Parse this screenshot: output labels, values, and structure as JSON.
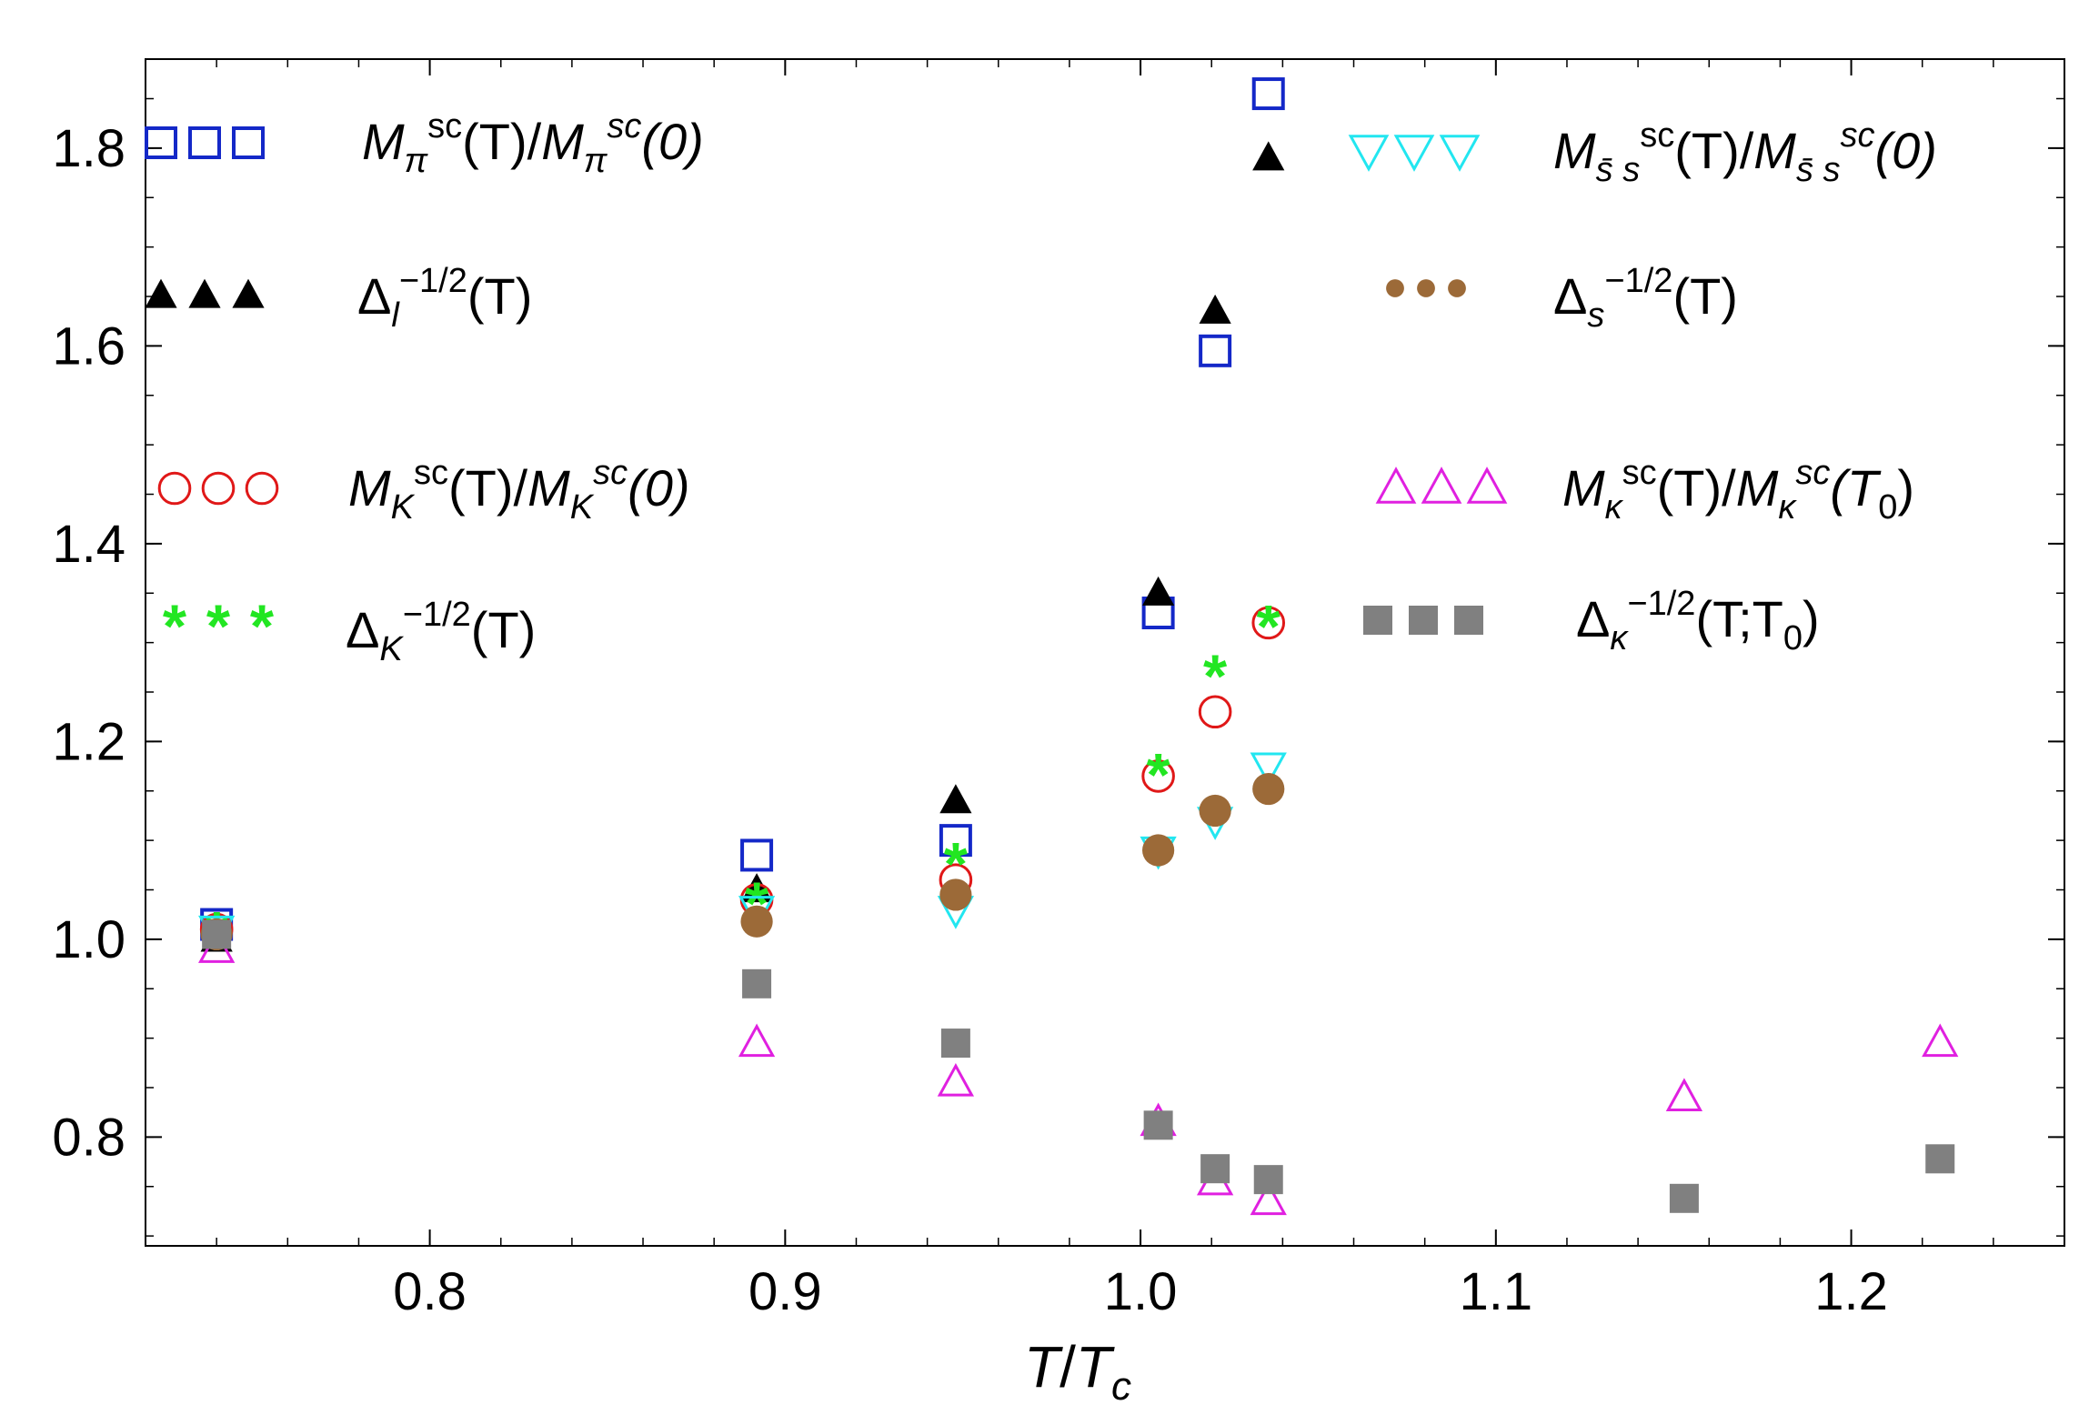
{
  "chart_data": {
    "type": "scatter",
    "title": "",
    "xlabel_parts": {
      "a": "T",
      "slash": "/",
      "b": "T",
      "sub": "c"
    },
    "ylabel": "",
    "xlim": [
      0.72,
      1.26
    ],
    "ylim": [
      0.69,
      1.89
    ],
    "x_ticks": [
      0.8,
      0.9,
      1.0,
      1.1,
      1.2
    ],
    "x_tick_labels": [
      "0.8",
      "0.9",
      "1.0",
      "1.1",
      "1.2"
    ],
    "y_ticks": [
      0.8,
      1.0,
      1.2,
      1.4,
      1.6,
      1.8
    ],
    "y_tick_labels": [
      "0.8",
      "1.0",
      "1.2",
      "1.4",
      "1.6",
      "1.8"
    ],
    "grid": false,
    "series": [
      {
        "id": "mpi",
        "marker": "square-open",
        "color": "#1428c8",
        "x": [
          0.74,
          0.892,
          0.948,
          1.005,
          1.021,
          1.036
        ],
        "y": [
          1.015,
          1.085,
          1.1,
          1.33,
          1.595,
          1.855
        ]
      },
      {
        "id": "delta_l",
        "marker": "triangle-filled",
        "color": "#000000",
        "x": [
          0.74,
          0.892,
          0.948,
          1.005,
          1.021,
          1.036
        ],
        "y": [
          1.0,
          1.05,
          1.14,
          1.35,
          1.635,
          1.79
        ]
      },
      {
        "id": "mk",
        "marker": "circle-open",
        "color": "#e01818",
        "x": [
          0.74,
          0.892,
          0.948,
          1.005,
          1.021,
          1.036
        ],
        "y": [
          1.01,
          1.04,
          1.06,
          1.165,
          1.23,
          1.32
        ]
      },
      {
        "id": "delta_k",
        "marker": "asterisk",
        "color": "#22e622",
        "x": [
          0.74,
          0.892,
          0.948,
          1.005,
          1.021,
          1.036
        ],
        "y": [
          1.005,
          1.035,
          1.075,
          1.165,
          1.265,
          1.315
        ]
      },
      {
        "id": "mss",
        "marker": "triangle-down-open",
        "color": "#22e6f0",
        "x": [
          0.74,
          0.892,
          0.948,
          1.005,
          1.021,
          1.036
        ],
        "y": [
          1.01,
          1.03,
          1.03,
          1.09,
          1.12,
          1.175
        ]
      },
      {
        "id": "delta_s",
        "marker": "circle-filled",
        "color": "#9c6a38",
        "x": [
          0.74,
          0.892,
          0.948,
          1.005,
          1.021,
          1.036
        ],
        "y": [
          1.005,
          1.018,
          1.045,
          1.09,
          1.13,
          1.152
        ]
      },
      {
        "id": "mkappa",
        "marker": "triangle-open",
        "color": "#e020e0",
        "x": [
          0.74,
          0.892,
          0.948,
          1.005,
          1.021,
          1.036,
          1.153,
          1.225
        ],
        "y": [
          0.99,
          0.895,
          0.855,
          0.815,
          0.755,
          0.735,
          0.84,
          0.895
        ]
      },
      {
        "id": "delta_kappa",
        "marker": "square-filled",
        "color": "#808080",
        "x": [
          0.74,
          0.892,
          0.948,
          1.005,
          1.021,
          1.036,
          1.153,
          1.225
        ],
        "y": [
          1.005,
          0.955,
          0.895,
          0.812,
          0.768,
          0.757,
          0.738,
          0.778
        ]
      }
    ],
    "legend": [
      {
        "series": "mpi",
        "location": "top-left",
        "text": {
          "m1": "M",
          "sub1": "π",
          "sup1": "sc",
          "mid": "(T)/",
          "m2": "M",
          "sub2": "π",
          "sup2": "sc",
          "end": "(0)"
        }
      },
      {
        "series": "delta_l",
        "location": "top-left",
        "text": {
          "m1": "Δ",
          "sub1": "l",
          "sup1": "−1/2",
          "end": "(T)"
        }
      },
      {
        "series": "mk",
        "location": "top-left",
        "text": {
          "m1": "M",
          "sub1": "K",
          "sup1": "sc",
          "mid": "(T)/",
          "m2": "M",
          "sub2": "K",
          "sup2": "sc",
          "end": "(0)"
        }
      },
      {
        "series": "delta_k",
        "location": "top-left",
        "text": {
          "m1": "Δ",
          "sub1": "K",
          "sup1": "−1/2",
          "end": "(T)"
        }
      },
      {
        "series": "mss",
        "location": "top-right",
        "text": {
          "m1": "M",
          "sub1": "s̄ s",
          "sup1": "sc",
          "mid": "(T)/",
          "m2": "M",
          "sub2": "s̄ s",
          "sup2": "sc",
          "end": "(0)"
        }
      },
      {
        "series": "delta_s",
        "location": "top-right",
        "text": {
          "m1": "Δ",
          "sub1": "s",
          "sup1": "−1/2",
          "end": "(T)"
        }
      },
      {
        "series": "mkappa",
        "location": "top-right",
        "text": {
          "m1": "M",
          "sub1": "κ",
          "sup1": "sc",
          "mid": "(T)/",
          "m2": "M",
          "sub2": "κ",
          "sup2": "sc",
          "end": "(T",
          "end_sub": "0",
          "end_close": ")"
        }
      },
      {
        "series": "delta_kappa",
        "location": "top-right",
        "text": {
          "m1": "Δ",
          "sub1": "κ",
          "sup1": "−1/2",
          "end": "(T;T",
          "end_sub": "0",
          "end_close": ")"
        }
      }
    ]
  }
}
